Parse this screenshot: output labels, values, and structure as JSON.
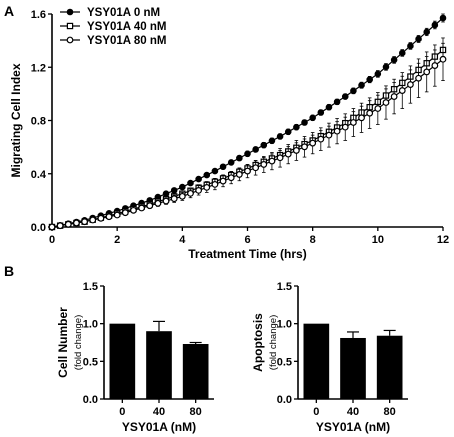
{
  "chart_data": [
    {
      "panel": "A",
      "type": "line",
      "xlabel": "Treatment Time (hrs)",
      "ylabel": "Migrating Cell Index",
      "xlim": [
        0,
        12
      ],
      "ylim": [
        0,
        1.6
      ],
      "xticks": [
        "0",
        "2",
        "4",
        "6",
        "8",
        "10",
        "12"
      ],
      "yticks": [
        "0.0",
        "0.4",
        "0.8",
        "1.2",
        "1.6"
      ],
      "legend_position": "top-left",
      "x": [
        0,
        1,
        2,
        3,
        4,
        5,
        6,
        7,
        8,
        9,
        10,
        11,
        12
      ],
      "series": [
        {
          "name": "YSY01A 0 nM",
          "marker": "filled-circle",
          "values": [
            0,
            0.05,
            0.12,
            0.2,
            0.3,
            0.42,
            0.55,
            0.68,
            0.82,
            0.98,
            1.15,
            1.36,
            1.57
          ],
          "errors": [
            0,
            0.005,
            0.01,
            0.01,
            0.015,
            0.015,
            0.02,
            0.02,
            0.02,
            0.02,
            0.025,
            0.025,
            0.03
          ]
        },
        {
          "name": "YSY01A 40 nM",
          "marker": "open-square",
          "values": [
            0,
            0.04,
            0.1,
            0.17,
            0.25,
            0.34,
            0.44,
            0.54,
            0.65,
            0.78,
            0.94,
            1.13,
            1.33
          ],
          "errors": [
            0,
            0.005,
            0.01,
            0.015,
            0.02,
            0.025,
            0.03,
            0.035,
            0.04,
            0.045,
            0.05,
            0.05,
            0.05
          ]
        },
        {
          "name": "YSY01A 80 nM",
          "marker": "open-circle",
          "values": [
            0,
            0.04,
            0.09,
            0.16,
            0.23,
            0.32,
            0.42,
            0.52,
            0.63,
            0.75,
            0.89,
            1.07,
            1.26
          ],
          "errors": [
            0,
            0.01,
            0.015,
            0.02,
            0.03,
            0.04,
            0.05,
            0.07,
            0.08,
            0.1,
            0.12,
            0.14,
            0.16
          ]
        }
      ]
    },
    {
      "panel": "B",
      "type": "bar",
      "xlabel": "YSY01A (nM)",
      "ylabel": "Cell Number",
      "ylabel_sub": "(fold change)",
      "ylim": [
        0,
        1.5
      ],
      "yticks": [
        "0.0",
        "0.5",
        "1.0",
        "1.5"
      ],
      "categories": [
        "0",
        "40",
        "80"
      ],
      "values": [
        1.0,
        0.9,
        0.73
      ],
      "errors": [
        0,
        0.13,
        0.02
      ]
    },
    {
      "type": "bar",
      "xlabel": "YSY01A (nM)",
      "ylabel": "Apoptosis",
      "ylabel_sub": "(fold change)",
      "ylim": [
        0,
        1.5
      ],
      "yticks": [
        "0.0",
        "0.5",
        "1.0",
        "1.5"
      ],
      "categories": [
        "0",
        "40",
        "80"
      ],
      "values": [
        1.0,
        0.81,
        0.84
      ],
      "errors": [
        0,
        0.08,
        0.07
      ]
    }
  ]
}
